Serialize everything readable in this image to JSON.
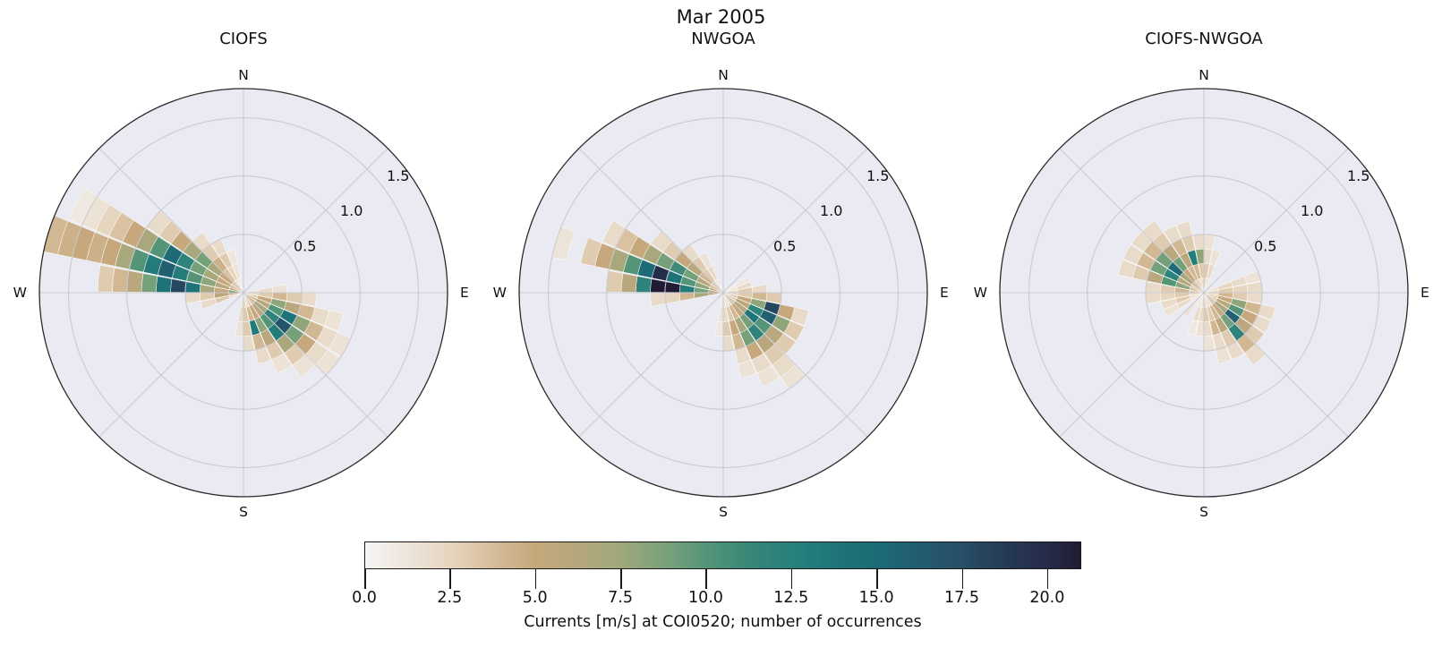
{
  "figure_title": "Mar 2005",
  "style": {
    "background": "#ffffff",
    "polar_background": "#eaeaf2",
    "grid_color": "#c4c4cb",
    "outline_color": "#2b2b2b",
    "text_color": "#111111"
  },
  "chart_data": {
    "type": "heatmap",
    "subtype": "polar-rose-histogram-small-multiples",
    "title": "Mar 2005",
    "compass_labels": [
      "N",
      "E",
      "S",
      "W"
    ],
    "r_ticks": [
      0.5,
      1.0,
      1.5
    ],
    "r_tick_labels": [
      "0.5",
      "1.0",
      "1.5"
    ],
    "r_tick_angle_deg": 53,
    "r_max": 1.75,
    "r_bin": 0.125,
    "dir_bin_deg": 11.25,
    "colormap": {
      "vmin": 0,
      "vmax": 21,
      "stops": [
        [
          0,
          "#f7f4f2"
        ],
        [
          1,
          "#efe8e0"
        ],
        [
          2.5,
          "#e6d5bf"
        ],
        [
          4,
          "#d2b793"
        ],
        [
          5,
          "#c6a87c"
        ],
        [
          6.5,
          "#b2a77d"
        ],
        [
          7.5,
          "#9fa87b"
        ],
        [
          9,
          "#74a07a"
        ],
        [
          10,
          "#549578"
        ],
        [
          11.5,
          "#348578"
        ],
        [
          12.5,
          "#27817b"
        ],
        [
          14,
          "#1d7377"
        ],
        [
          15,
          "#1c6b76"
        ],
        [
          16.5,
          "#23596e"
        ],
        [
          17.5,
          "#274f66"
        ],
        [
          19,
          "#253754"
        ],
        [
          20,
          "#252c49"
        ],
        [
          21,
          "#211b34"
        ]
      ]
    },
    "subplots": [
      {
        "title": "CIOFS",
        "petals": [
          {
            "dir": 253.1,
            "r0": 0,
            "counts": [
              2,
              3,
              2
            ]
          },
          {
            "dir": 264.4,
            "r0": 0,
            "counts": [
              4,
              6,
              3,
              2
            ]
          },
          {
            "dir": 275.6,
            "r0": 0,
            "counts": [
              9,
              5,
              7,
              14,
              18,
              14,
              9,
              6,
              4,
              3
            ]
          },
          {
            "dir": 286.9,
            "r0": 0,
            "counts": [
              5,
              6,
              8,
              10,
              13,
              16,
              13,
              10,
              7,
              5,
              4.5,
              5,
              4.5,
              4
            ]
          },
          {
            "dir": 298.1,
            "r0": 0,
            "counts": [
              4,
              5,
              7,
              9,
              12,
              15,
              10,
              7,
              5,
              3.5,
              2.5,
              1.5,
              1
            ]
          },
          {
            "dir": 309.4,
            "r0": 0,
            "counts": [
              3,
              5,
              7,
              9,
              7,
              5,
              3,
              2
            ]
          },
          {
            "dir": 320.6,
            "r0": 0,
            "counts": [
              2.5,
              3.5,
              4.5,
              3,
              2
            ]
          },
          {
            "dir": 331.9,
            "r0": 0,
            "counts": [
              1.5,
              2.5,
              3,
              2
            ]
          },
          {
            "dir": 343.1,
            "r0": 0,
            "counts": [
              1,
              1.5,
              1.2
            ]
          },
          {
            "dir": 84.4,
            "r0": 0,
            "counts": [
              1.5,
              2,
              1.5
            ]
          },
          {
            "dir": 95.6,
            "r0": 0,
            "counts": [
              2,
              3,
              4,
              3,
              2
            ]
          },
          {
            "dir": 106.9,
            "r0": 0,
            "counts": [
              3,
              5,
              8,
              6,
              4,
              2,
              1.5
            ]
          },
          {
            "dir": 118.1,
            "r0": 0,
            "counts": [
              4,
              6,
              10,
              14,
              8,
              4,
              2,
              1.5
            ]
          },
          {
            "dir": 129.4,
            "r0": 0,
            "counts": [
              4,
              7,
              12,
              17,
              9,
              5,
              2,
              1.5
            ]
          },
          {
            "dir": 140.6,
            "r0": 0,
            "counts": [
              3,
              6,
              10,
              13,
              7,
              3,
              1.5
            ]
          },
          {
            "dir": 151.9,
            "r0": 0,
            "counts": [
              3,
              5,
              8,
              6,
              3,
              1.5
            ]
          },
          {
            "dir": 163.1,
            "r0": 0,
            "counts": [
              2,
              4,
              13,
              4,
              2
            ]
          },
          {
            "dir": 174.4,
            "r0": 0,
            "counts": [
              2,
              3,
              3,
              2
            ]
          },
          {
            "dir": 185.6,
            "r0": 0,
            "counts": [
              1.5,
              2,
              1.5
            ]
          }
        ]
      },
      {
        "title": "NWGOA",
        "petals": [
          {
            "dir": 264.4,
            "r0": 0,
            "counts": [
              5,
              7,
              4,
              2.5,
              2
            ]
          },
          {
            "dir": 275.6,
            "r0": 0,
            "counts": [
              6,
              9,
              13,
              26,
              21,
              12,
              6,
              3
            ]
          },
          {
            "dir": 286.9,
            "r0": 0,
            "counts": [
              5,
              8,
              10,
              14,
              20,
              15,
              10,
              7,
              5,
              3
            ]
          },
          {
            "dir": 287,
            "r0": 1.375,
            "counts": [
              1.3
            ]
          },
          {
            "dir": 298.1,
            "r0": 0,
            "counts": [
              4,
              6,
              9,
              11,
              9,
              7,
              5,
              3.5,
              2
            ]
          },
          {
            "dir": 309.4,
            "r0": 0,
            "counts": [
              3,
              4,
              6,
              5,
              3,
              2
            ]
          },
          {
            "dir": 320.6,
            "r0": 0,
            "counts": [
              2,
              3,
              3,
              2
            ]
          },
          {
            "dir": 331.9,
            "r0": 0,
            "counts": [
              1.5,
              2,
              1.5
            ]
          },
          {
            "dir": 61.9,
            "r0": 0,
            "counts": [
              1,
              1.2
            ]
          },
          {
            "dir": 73.1,
            "r0": 0,
            "counts": [
              1.5,
              2
            ]
          },
          {
            "dir": 84.4,
            "r0": 0,
            "counts": [
              2,
              3,
              2
            ]
          },
          {
            "dir": 95.6,
            "r0": 0,
            "counts": [
              2,
              3,
              4,
              3
            ]
          },
          {
            "dir": 106.9,
            "r0": 0,
            "counts": [
              3,
              5,
              8,
              18,
              5,
              2
            ]
          },
          {
            "dir": 118.1,
            "r0": 0,
            "counts": [
              3,
              6,
              12,
              16,
              8,
              3
            ]
          },
          {
            "dir": 129.4,
            "r0": 0,
            "counts": [
              3,
              6,
              14,
              10,
              6,
              3
            ]
          },
          {
            "dir": 140.6,
            "r0": 0,
            "counts": [
              3,
              5,
              9,
              12,
              6,
              3,
              2,
              1.5
            ]
          },
          {
            "dir": 151.9,
            "r0": 0,
            "counts": [
              2,
              4,
              7,
              9,
              5,
              2,
              1.5
            ]
          },
          {
            "dir": 163.1,
            "r0": 0,
            "counts": [
              2,
              3,
              5,
              4,
              2,
              1.5
            ]
          },
          {
            "dir": 174.4,
            "r0": 0,
            "counts": [
              1.5,
              2,
              3,
              2
            ]
          },
          {
            "dir": 185.6,
            "r0": 0,
            "counts": [
              1,
              1.5,
              1
            ]
          }
        ]
      },
      {
        "title": "CIOFS-NWGOA",
        "petals": [
          {
            "dir": 275.6,
            "r0": 0,
            "counts": [
              3,
              4,
              3,
              2
            ]
          },
          {
            "dir": 286.9,
            "r0": 0,
            "counts": [
              4,
              8,
              10,
              6,
              3,
              2
            ]
          },
          {
            "dir": 298.1,
            "r0": 0,
            "counts": [
              3,
              6,
              12,
              9,
              4,
              2
            ]
          },
          {
            "dir": 309.4,
            "r0": 0,
            "counts": [
              4,
              7,
              15,
              9,
              4,
              2
            ]
          },
          {
            "dir": 320.6,
            "r0": 0,
            "counts": [
              3,
              5,
              9,
              6,
              3,
              2
            ]
          },
          {
            "dir": 331.9,
            "r0": 0,
            "counts": [
              3,
              4,
              6,
              4,
              2
            ]
          },
          {
            "dir": 343.1,
            "r0": 0,
            "counts": [
              2,
              4,
              13,
              3,
              2
            ]
          },
          {
            "dir": 354.4,
            "r0": 0,
            "counts": [
              2,
              3,
              8,
              2
            ]
          },
          {
            "dir": 5.6,
            "r0": 0,
            "counts": [
              2,
              3,
              2,
              1.5
            ]
          },
          {
            "dir": 16.9,
            "r0": 0,
            "counts": [
              1.5,
              2,
              1.5
            ]
          },
          {
            "dir": 73.1,
            "r0": 0,
            "counts": [
              2,
              2.5,
              2,
              1.5
            ]
          },
          {
            "dir": 84.4,
            "r0": 0,
            "counts": [
              2,
              3,
              2.5,
              2
            ]
          },
          {
            "dir": 95.6,
            "r0": 0,
            "counts": [
              2,
              4,
              3,
              2
            ]
          },
          {
            "dir": 106.9,
            "r0": 0,
            "counts": [
              3,
              5,
              8,
              4,
              2
            ]
          },
          {
            "dir": 118.1,
            "r0": 0,
            "counts": [
              3,
              6,
              10,
              5,
              2
            ]
          },
          {
            "dir": 129.4,
            "r0": 0,
            "counts": [
              3,
              7,
              16,
              6,
              3
            ]
          },
          {
            "dir": 140.6,
            "r0": 0,
            "counts": [
              3,
              5,
              9,
              12,
              4,
              2
            ]
          },
          {
            "dir": 151.9,
            "r0": 0,
            "counts": [
              2,
              4,
              6,
              3,
              2
            ]
          },
          {
            "dir": 163.1,
            "r0": 0,
            "counts": [
              2,
              3,
              4,
              2,
              1.5
            ]
          },
          {
            "dir": 174.4,
            "r0": 0,
            "counts": [
              2,
              3,
              2,
              1.5
            ]
          },
          {
            "dir": 185.6,
            "r0": 0,
            "counts": [
              1.5,
              2,
              1.5
            ]
          },
          {
            "dir": 196.9,
            "r0": 0,
            "counts": [
              1.5,
              2,
              1
            ]
          },
          {
            "dir": 219.4,
            "r0": 0,
            "counts": [
              1,
              1.5
            ]
          },
          {
            "dir": 241.9,
            "r0": 0,
            "counts": [
              1.5,
              2,
              1.5
            ]
          },
          {
            "dir": 253.1,
            "r0": 0,
            "counts": [
              2,
              3,
              2
            ]
          },
          {
            "dir": 264.4,
            "r0": 0,
            "counts": [
              2,
              3,
              2.5,
              2
            ]
          }
        ]
      }
    ],
    "colorbar": {
      "label": "Currents [m/s] at COI0520; number of occurrences",
      "tick_values": [
        0,
        2.5,
        5,
        7.5,
        10,
        12.5,
        15,
        17.5,
        20
      ],
      "tick_labels": [
        "0.0",
        "2.5",
        "5.0",
        "7.5",
        "10.0",
        "12.5",
        "15.0",
        "17.5",
        "20.0"
      ]
    }
  }
}
